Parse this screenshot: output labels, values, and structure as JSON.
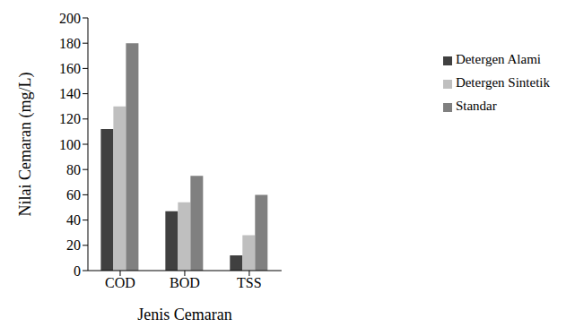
{
  "chart_data": {
    "type": "bar",
    "x_label": "Jenis Cemaran",
    "y_label": "Nilai Cemaran (mg/L)",
    "categories": [
      "COD",
      "BOD",
      "TSS"
    ],
    "series": [
      {
        "name": "Detergen Alami",
        "color": "#404040",
        "values": [
          112,
          47,
          12
        ]
      },
      {
        "name": "Detergen Sintetik",
        "color": "#bfbfbf",
        "values": [
          130,
          54,
          28
        ]
      },
      {
        "name": "Standar",
        "color": "#808080",
        "values": [
          180,
          75,
          60
        ]
      }
    ],
    "ylim": [
      0,
      200
    ],
    "yticks": [
      0,
      20,
      40,
      60,
      80,
      100,
      120,
      140,
      160,
      180,
      200
    ],
    "grid": false,
    "legend": "right"
  }
}
